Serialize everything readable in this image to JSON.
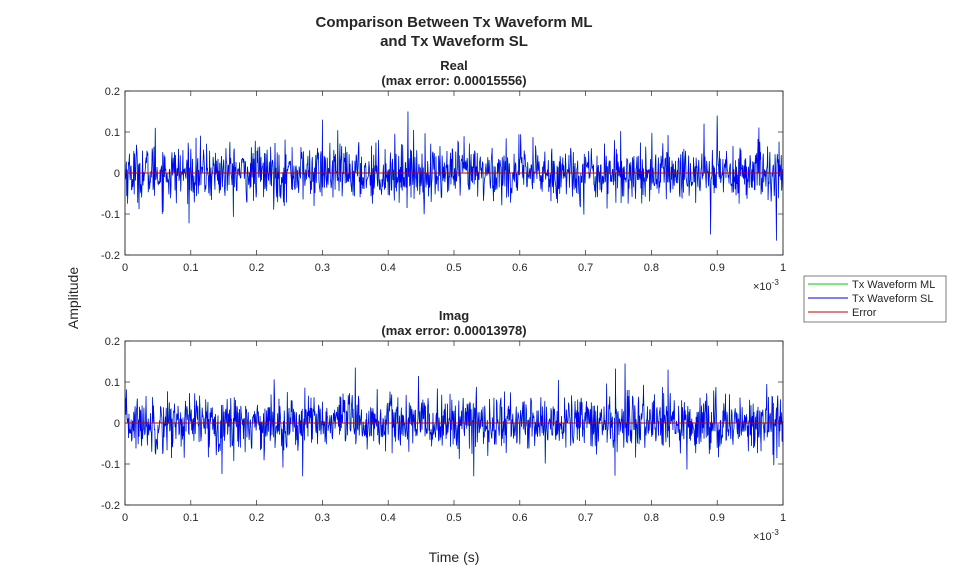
{
  "figure": {
    "title_lines": [
      "Comparison Between Tx Waveform ML",
      "and Tx Waveform SL"
    ],
    "shared_ylabel": "Amplitude",
    "shared_xlabel": "Time (s)"
  },
  "legend": {
    "placement": "right",
    "entries": [
      {
        "label": "Tx Waveform ML",
        "color": "#00c800"
      },
      {
        "label": "Tx Waveform SL",
        "color": "#0000ff"
      },
      {
        "label": "Error",
        "color": "#c00000"
      }
    ]
  },
  "chart_data": [
    {
      "type": "line",
      "title_lines": [
        "Real",
        "(max error: 0.00015556)"
      ],
      "xlim": [
        0,
        1
      ],
      "ylim": [
        -0.2,
        0.2
      ],
      "x_ticks": [
        "0",
        "0.1",
        "0.2",
        "0.3",
        "0.4",
        "0.5",
        "0.6",
        "0.7",
        "0.8",
        "0.9",
        "1"
      ],
      "y_ticks": [
        "0.2",
        "0.1",
        "0",
        "-0.1",
        "-0.2"
      ],
      "x_exponent_label": "×10",
      "x_exponent_power": "-3",
      "series": [
        {
          "name": "Tx Waveform ML",
          "color": "#00c800",
          "amplitude": 0.035,
          "peaks": [
            [
              0.046,
              0.11
            ],
            [
              0.3,
              0.13
            ],
            [
              0.43,
              0.15
            ],
            [
              0.88,
              0.12
            ],
            [
              0.9,
              0.14
            ],
            [
              0.99,
              -0.165
            ],
            [
              0.89,
              -0.15
            ]
          ]
        },
        {
          "name": "Tx Waveform SL",
          "color": "#0000ff",
          "amplitude": 0.035,
          "peaks": [
            [
              0.046,
              0.11
            ],
            [
              0.3,
              0.13
            ],
            [
              0.43,
              0.15
            ],
            [
              0.88,
              0.12
            ],
            [
              0.9,
              0.14
            ],
            [
              0.99,
              -0.165
            ],
            [
              0.89,
              -0.15
            ]
          ]
        },
        {
          "name": "Error",
          "color": "#c00000",
          "value": 0
        }
      ]
    },
    {
      "type": "line",
      "title_lines": [
        "Imag",
        "(max error: 0.00013978)"
      ],
      "xlim": [
        0,
        1
      ],
      "ylim": [
        -0.2,
        0.2
      ],
      "x_ticks": [
        "0",
        "0.1",
        "0.2",
        "0.3",
        "0.4",
        "0.5",
        "0.6",
        "0.7",
        "0.8",
        "0.9",
        "1"
      ],
      "y_ticks": [
        "0.2",
        "0.1",
        "0",
        "-0.1",
        "-0.2"
      ],
      "x_exponent_label": "×10",
      "x_exponent_power": "-3",
      "series": [
        {
          "name": "Tx Waveform ML",
          "color": "#00c800",
          "amplitude": 0.035,
          "peaks": [
            [
              0.35,
              0.135
            ],
            [
              0.76,
              0.145
            ],
            [
              0.27,
              -0.13
            ],
            [
              0.53,
              -0.13
            ]
          ]
        },
        {
          "name": "Tx Waveform SL",
          "color": "#0000ff",
          "amplitude": 0.035,
          "peaks": [
            [
              0.35,
              0.135
            ],
            [
              0.76,
              0.145
            ],
            [
              0.27,
              -0.13
            ],
            [
              0.53,
              -0.13
            ]
          ]
        },
        {
          "name": "Error",
          "color": "#c00000",
          "value": 0
        }
      ]
    }
  ]
}
